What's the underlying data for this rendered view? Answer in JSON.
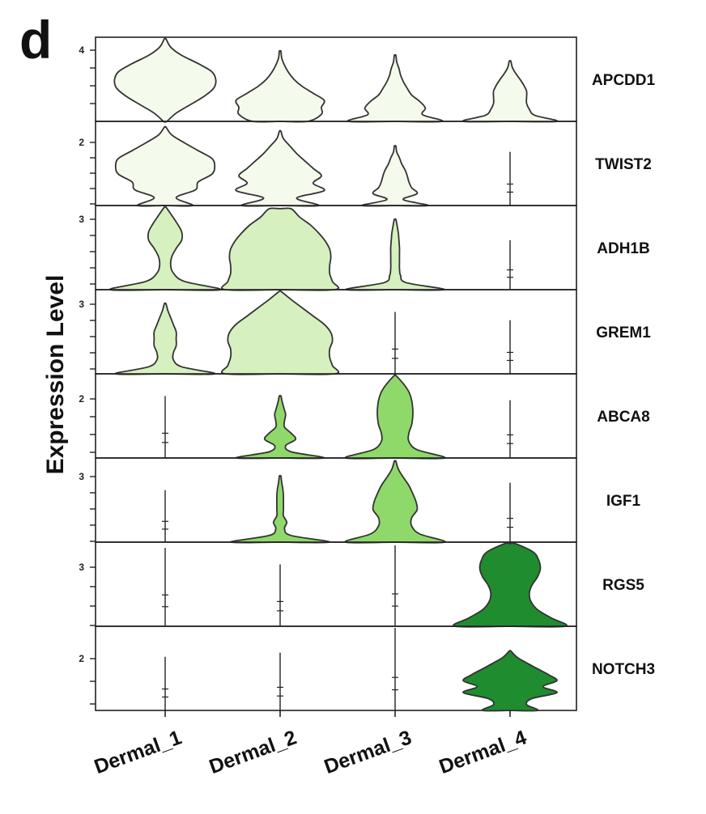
{
  "chart_data": {
    "type": "violin",
    "panel_label": "d",
    "ylabel": "Expression Level",
    "categories": [
      "Dermal_1",
      "Dermal_2",
      "Dermal_3",
      "Dermal_4"
    ],
    "colors": {
      "APCDD1": "#f4faec",
      "TWIST2": "#f4faec",
      "ADH1B": "#d7f0bf",
      "GREM1": "#d7f0bf",
      "ABCA8": "#8fd96a",
      "IGF1": "#8fd96a",
      "RGS5": "#1f8c2f",
      "NOTCH3": "#1f8c2f"
    },
    "genes": [
      {
        "name": "APCDD1",
        "tick_label": "4",
        "violins": [
          {
            "max": 1.0,
            "density": [
              0.03,
              0.2,
              0.45,
              0.7,
              0.88,
              0.92,
              0.85,
              0.6,
              0.3,
              0.1,
              0
            ]
          },
          {
            "max": 0.85,
            "density": [
              0.5,
              0.75,
              0.75,
              0.8,
              0.6,
              0.4,
              0.25,
              0.15,
              0.08,
              0.03,
              0
            ]
          },
          {
            "max": 0.8,
            "density": [
              0.85,
              0.5,
              0.55,
              0.45,
              0.3,
              0.22,
              0.15,
              0.1,
              0.07,
              0.03,
              0
            ]
          },
          {
            "max": 0.73,
            "density": [
              0.85,
              0.45,
              0.35,
              0.3,
              0.3,
              0.3,
              0.25,
              0.18,
              0.1,
              0.04,
              0
            ]
          }
        ]
      },
      {
        "name": "TWIST2",
        "tick_label": "2",
        "violins": [
          {
            "max": 0.95,
            "density": [
              0.5,
              0.2,
              0.55,
              0.6,
              0.85,
              0.9,
              0.85,
              0.6,
              0.35,
              0.12,
              0
            ]
          },
          {
            "max": 0.9,
            "density": [
              0.7,
              0.3,
              0.8,
              0.6,
              0.75,
              0.6,
              0.45,
              0.3,
              0.18,
              0.06,
              0
            ]
          },
          {
            "max": 0.72,
            "density": [
              0.6,
              0.15,
              0.4,
              0.3,
              0.25,
              0.22,
              0.18,
              0.12,
              0.08,
              0.03,
              0
            ]
          },
          {
            "max": 0.65,
            "density": null
          }
        ]
      },
      {
        "name": "ADH1B",
        "tick_label": "3",
        "violins": [
          {
            "max": 1.0,
            "density": [
              1.0,
              0.35,
              0.15,
              0.1,
              0.12,
              0.2,
              0.3,
              0.3,
              0.22,
              0.12,
              0
            ]
          },
          {
            "max": 0.98,
            "density": [
              1.0,
              0.95,
              0.9,
              0.9,
              0.92,
              0.9,
              0.82,
              0.7,
              0.55,
              0.35,
              0.2
            ]
          },
          {
            "max": 0.85,
            "density": [
              0.9,
              0.2,
              0.1,
              0.08,
              0.08,
              0.08,
              0.08,
              0.07,
              0.06,
              0.04,
              0
            ]
          },
          {
            "max": 0.6,
            "density": null
          }
        ]
      },
      {
        "name": "GREM1",
        "tick_label": "3",
        "violins": [
          {
            "max": 0.85,
            "density": [
              0.9,
              0.3,
              0.15,
              0.15,
              0.2,
              0.2,
              0.2,
              0.15,
              0.1,
              0.05,
              0
            ]
          },
          {
            "max": 1.0,
            "density": [
              1.0,
              0.95,
              0.9,
              0.9,
              0.95,
              0.92,
              0.8,
              0.6,
              0.4,
              0.2,
              0
            ]
          },
          {
            "max": 0.75,
            "density": null
          },
          {
            "max": 0.65,
            "density": null
          }
        ]
      },
      {
        "name": "ABCA8",
        "tick_label": "2",
        "violins": [
          {
            "max": 0.75,
            "density": null
          },
          {
            "max": 0.75,
            "density": [
              0.8,
              0.2,
              0.1,
              0.28,
              0.2,
              0.08,
              0.08,
              0.1,
              0.07,
              0.04,
              0
            ]
          },
          {
            "max": 1.0,
            "density": [
              0.9,
              0.4,
              0.25,
              0.25,
              0.3,
              0.32,
              0.32,
              0.3,
              0.25,
              0.15,
              0
            ]
          },
          {
            "max": 0.7,
            "density": null
          }
        ]
      },
      {
        "name": "IGF1",
        "tick_label": "3",
        "violins": [
          {
            "max": 0.63,
            "density": null
          },
          {
            "max": 0.8,
            "density": [
              0.9,
              0.2,
              0.08,
              0.12,
              0.06,
              0.06,
              0.06,
              0.06,
              0.05,
              0.03,
              0
            ]
          },
          {
            "max": 0.98,
            "density": [
              0.9,
              0.45,
              0.3,
              0.3,
              0.4,
              0.38,
              0.32,
              0.25,
              0.15,
              0.06,
              0
            ]
          },
          {
            "max": 0.72,
            "density": null
          }
        ]
      },
      {
        "name": "RGS5",
        "tick_label": "3",
        "violins": [
          {
            "max": 0.95,
            "density": null
          },
          {
            "max": 0.75,
            "density": null
          },
          {
            "max": 0.98,
            "density": null
          },
          {
            "max": 1.0,
            "density": [
              1.0,
              0.75,
              0.5,
              0.38,
              0.35,
              0.4,
              0.5,
              0.55,
              0.52,
              0.42,
              0.1
            ]
          }
        ]
      },
      {
        "name": "NOTCH3",
        "tick_label": "2",
        "violins": [
          {
            "max": 0.65,
            "density": null
          },
          {
            "max": 0.7,
            "density": null
          },
          {
            "max": 1.0,
            "density": null
          },
          {
            "max": 0.72,
            "density": [
              0.5,
              0.3,
              0.4,
              0.85,
              0.6,
              0.85,
              0.7,
              0.5,
              0.3,
              0.12,
              0
            ]
          }
        ]
      }
    ]
  }
}
